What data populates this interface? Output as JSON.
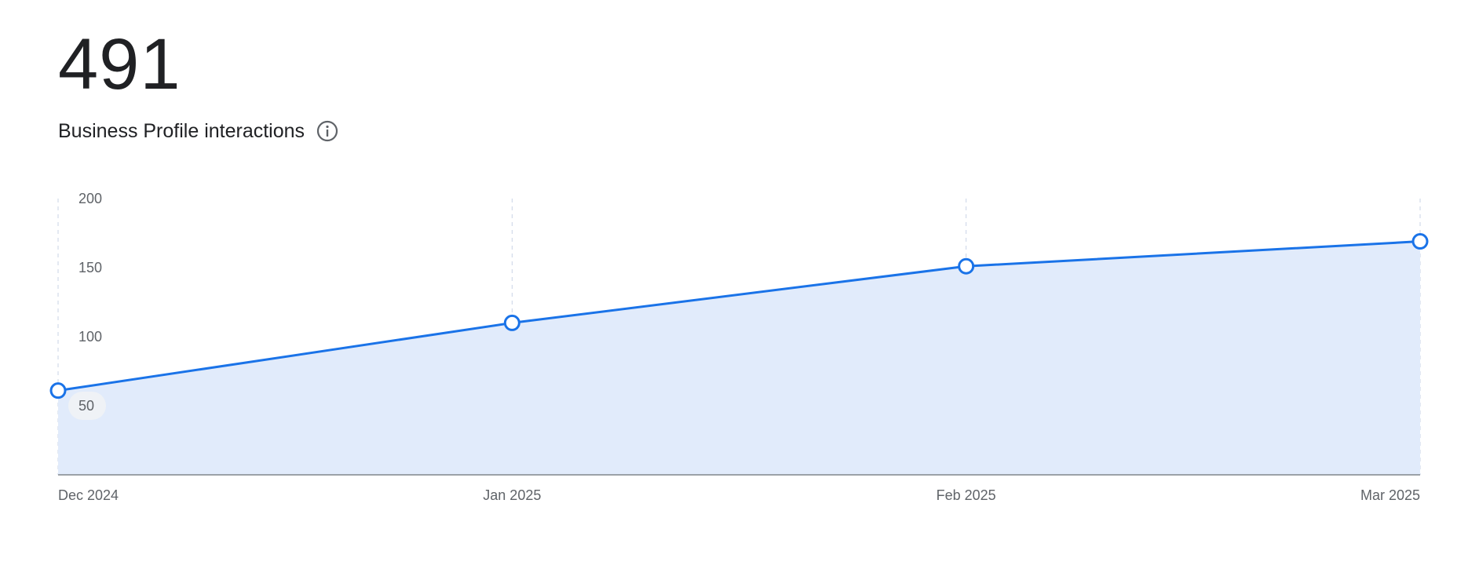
{
  "header": {
    "total": "491",
    "label": "Business Profile interactions",
    "info_icon": "info-icon"
  },
  "colors": {
    "line": "#1a73e8",
    "area": "#e1ebfb",
    "grid": "#c9d3e6",
    "axis": "#80868b",
    "text": "#202124",
    "muted": "#5f6368"
  },
  "chart_data": {
    "type": "area",
    "categories": [
      "Dec 2024",
      "Jan 2025",
      "Feb 2025",
      "Mar 2025"
    ],
    "values": [
      61,
      110,
      151,
      169
    ],
    "yticks": [
      50,
      100,
      150,
      200
    ],
    "ylim": [
      0,
      200
    ],
    "grid": "vertical dashed",
    "legend": "none"
  }
}
